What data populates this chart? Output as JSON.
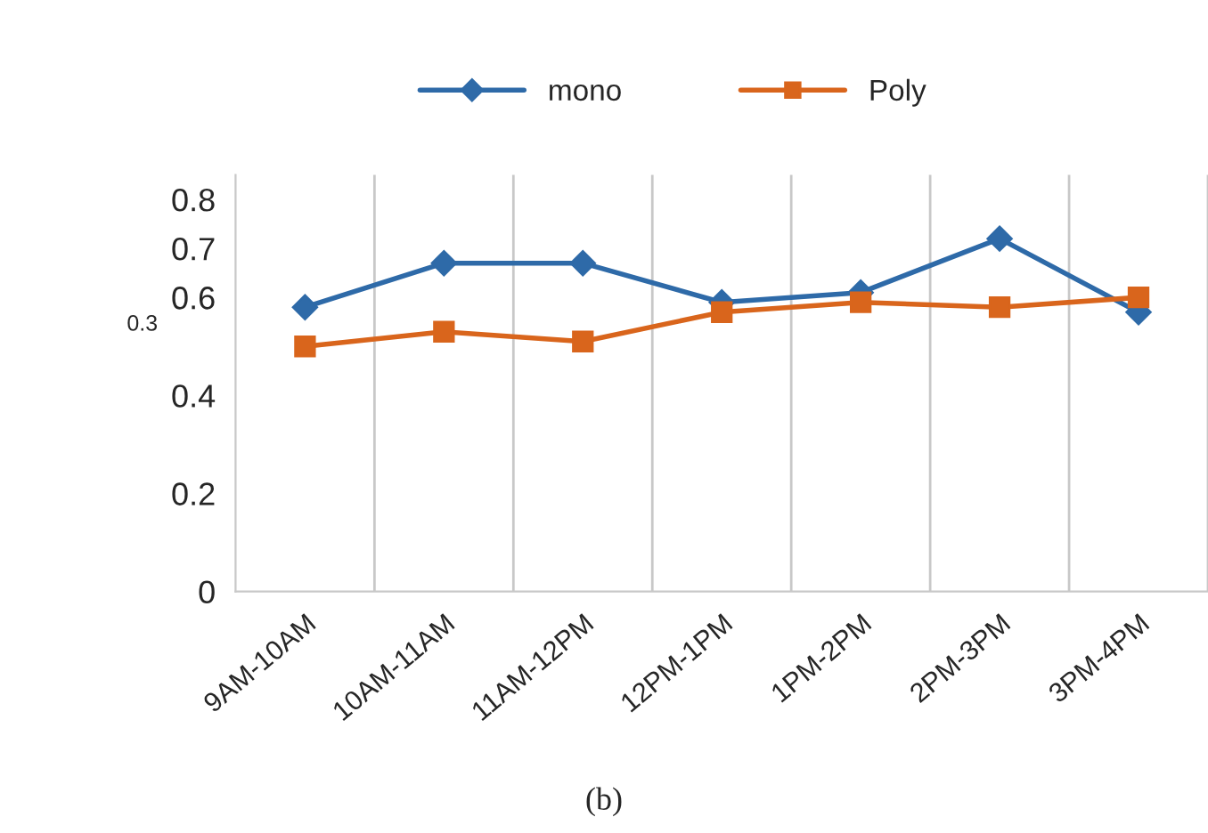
{
  "chart_data": {
    "type": "line",
    "categories": [
      "9AM-10AM",
      "10AM-11AM",
      "11AM-12PM",
      "12PM-1PM",
      "1PM-2PM",
      "2PM-3PM",
      "3PM-4PM"
    ],
    "series": [
      {
        "name": "mono",
        "color": "#2e6aa8",
        "marker": "diamond",
        "values": [
          0.58,
          0.67,
          0.67,
          0.59,
          0.61,
          0.72,
          0.57
        ]
      },
      {
        "name": "Poly",
        "color": "#d9651c",
        "marker": "square",
        "values": [
          0.5,
          0.53,
          0.51,
          0.57,
          0.59,
          0.58,
          0.6
        ]
      }
    ],
    "ylim": [
      0,
      0.85
    ],
    "yticks": [
      0,
      0.2,
      0.4,
      0.6,
      0.7,
      0.8
    ],
    "grid": "x",
    "legend": "top",
    "line_style": "solid",
    "annotations": [
      "0.3",
      "(b)"
    ]
  }
}
